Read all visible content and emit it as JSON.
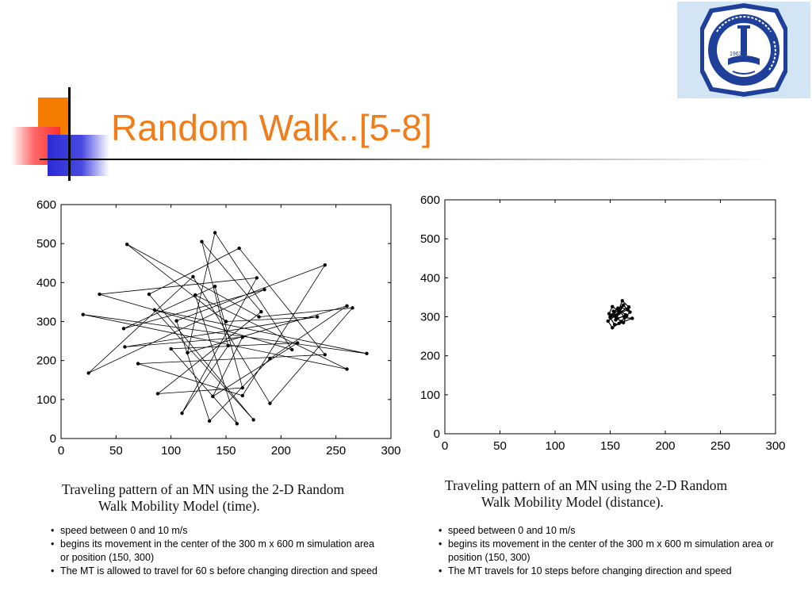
{
  "slide": {
    "title": "Random Walk..[5-8]"
  },
  "colors": {
    "title": "#f07d1a",
    "deco_orange": "#f57c00",
    "deco_red": "#ff2d2d",
    "deco_blue": "#2b2bd6",
    "logo_background": "#d3e4f4",
    "logo_ring": "#1e3f9a"
  },
  "logo": {
    "icon": "university-seal-icon",
    "year": "1963"
  },
  "chart_data": [
    {
      "type": "line",
      "xlim": [
        0,
        300
      ],
      "ylim": [
        0,
        600
      ],
      "xticks": [
        "0",
        "50",
        "100",
        "150",
        "200",
        "250",
        "300"
      ],
      "yticks": [
        "0",
        "100",
        "200",
        "300",
        "400",
        "500",
        "600"
      ],
      "grid": false,
      "markers": true,
      "caption_line1": "Traveling pattern of an MN using the 2-D Random",
      "caption_line2": "Walk Mobility Model (time).",
      "points": [
        [
          150,
          300
        ],
        [
          60,
          498
        ],
        [
          180,
          312
        ],
        [
          265,
          335
        ],
        [
          190,
          90
        ],
        [
          120,
          415
        ],
        [
          25,
          168
        ],
        [
          185,
          382
        ],
        [
          57,
          282
        ],
        [
          140,
          390
        ],
        [
          165,
          130
        ],
        [
          88,
          115
        ],
        [
          182,
          325
        ],
        [
          128,
          505
        ],
        [
          152,
          238
        ],
        [
          110,
          65
        ],
        [
          178,
          412
        ],
        [
          35,
          370
        ],
        [
          210,
          228
        ],
        [
          140,
          528
        ],
        [
          115,
          220
        ],
        [
          260,
          340
        ],
        [
          190,
          205
        ],
        [
          135,
          45
        ],
        [
          105,
          302
        ],
        [
          240,
          445
        ],
        [
          165,
          110
        ],
        [
          70,
          192
        ],
        [
          240,
          215
        ],
        [
          162,
          488
        ],
        [
          80,
          370
        ],
        [
          175,
          48
        ],
        [
          85,
          330
        ],
        [
          278,
          218
        ],
        [
          20,
          318
        ],
        [
          260,
          178
        ],
        [
          122,
          368
        ],
        [
          160,
          38
        ],
        [
          100,
          230
        ],
        [
          215,
          245
        ],
        [
          138,
          108
        ],
        [
          165,
          260
        ],
        [
          58,
          235
        ],
        [
          233,
          312
        ],
        [
          150,
          300
        ]
      ]
    },
    {
      "type": "line",
      "xlim": [
        0,
        300
      ],
      "ylim": [
        0,
        600
      ],
      "xticks": [
        "0",
        "50",
        "100",
        "150",
        "200",
        "250",
        "300"
      ],
      "yticks": [
        "0",
        "100",
        "200",
        "300",
        "400",
        "500",
        "600"
      ],
      "grid": false,
      "markers": true,
      "caption_line1": "Traveling pattern of an MN using the 2-D Random",
      "caption_line2": "Walk Mobility Model (distance).",
      "points": [
        [
          150,
          300
        ],
        [
          158,
          318
        ],
        [
          164,
          305
        ],
        [
          155,
          292
        ],
        [
          162,
          330
        ],
        [
          168,
          312
        ],
        [
          160,
          288
        ],
        [
          152,
          305
        ],
        [
          157,
          322
        ],
        [
          163,
          298
        ],
        [
          170,
          296
        ],
        [
          158,
          283
        ],
        [
          152,
          272
        ],
        [
          148,
          289
        ],
        [
          156,
          305
        ],
        [
          161,
          341
        ],
        [
          167,
          325
        ],
        [
          159,
          312
        ],
        [
          152,
          326
        ],
        [
          149,
          308
        ],
        [
          156,
          296
        ],
        [
          165,
          303
        ],
        [
          162,
          285
        ],
        [
          154,
          280
        ],
        [
          150,
          298
        ],
        [
          158,
          309
        ],
        [
          166,
          318
        ],
        [
          160,
          324
        ],
        [
          153,
          314
        ],
        [
          155,
          300
        ]
      ]
    }
  ],
  "bullets_left": [
    "speed between 0 and 10 m/s",
    "begins its movement in the center of the 300 m x 600 m simulation area or position (150, 300)",
    "The MT is allowed to travel for 60 s before changing direction and speed"
  ],
  "bullets_right": [
    "speed between 0 and 10 m/s",
    "begins its movement in the center of the 300 m x 600 m simulation area or position (150, 300)",
    "The MT travels for 10 steps before changing direction and speed"
  ]
}
